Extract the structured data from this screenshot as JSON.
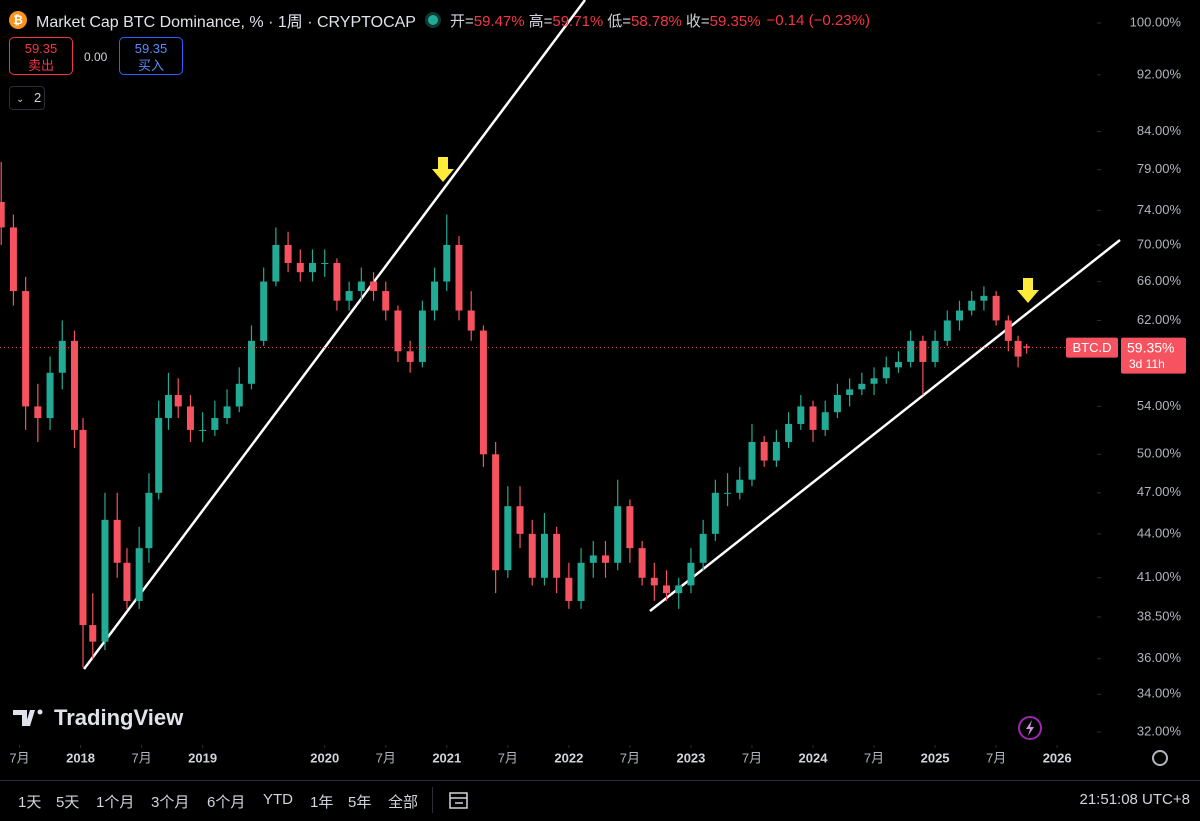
{
  "header": {
    "title": "Market Cap BTC Dominance, % · 1周 · CRYPTOCAP",
    "ohlc": [
      {
        "key": "开=",
        "value": "59.47%"
      },
      {
        "key": "高=",
        "value": "59.71%"
      },
      {
        "key": "低=",
        "value": "58.78%"
      },
      {
        "key": "收=",
        "value": "59.35%"
      }
    ],
    "change": "−0.14 (−0.23%)"
  },
  "trade_buttons": {
    "sell_price": "59.35",
    "sell_label": "卖出",
    "spread": "0.00",
    "buy_price": "59.35",
    "buy_label": "买入"
  },
  "indicator_count": 2,
  "branding": "TradingView",
  "ranges": [
    "1天",
    "5天",
    "1个月",
    "3个月",
    "6个月",
    "YTD",
    "1年",
    "5年",
    "全部"
  ],
  "clock": "21:51:08 UTC+8",
  "chart_data": {
    "type": "candlestick",
    "log_scale": true,
    "up_color": "#22ab94",
    "down_color": "#f7525f",
    "xlim": [
      2017.34,
      2026.31
    ],
    "ylim": [
      32,
      100
    ],
    "xticks": [
      {
        "value": 2017.5,
        "label": "7月"
      },
      2018,
      {
        "value": 2018.5,
        "label": "7月"
      },
      2019,
      2020,
      {
        "value": 2020.5,
        "label": "7月"
      },
      2021,
      {
        "value": 2021.5,
        "label": "7月"
      },
      2022,
      {
        "value": 2022.5,
        "label": "7月"
      },
      2023,
      {
        "value": 2023.5,
        "label": "7月"
      },
      2024,
      {
        "value": 2024.5,
        "label": "7月"
      },
      2025,
      {
        "value": 2025.5,
        "label": "7月"
      },
      2026
    ],
    "yticks": [
      {
        "value": 100,
        "label": "100.00%"
      },
      {
        "value": 92,
        "label": "92.00%"
      },
      {
        "value": 84,
        "label": "84.00%"
      },
      {
        "value": 79,
        "label": "79.00%"
      },
      {
        "value": 74,
        "label": "74.00%"
      },
      {
        "value": 70,
        "label": "70.00%"
      },
      {
        "value": 66,
        "label": "66.00%"
      },
      {
        "value": 62,
        "label": "62.00%"
      },
      {
        "value": 54,
        "label": "54.00%"
      },
      {
        "value": 50,
        "label": "50.00%"
      },
      {
        "value": 47,
        "label": "47.00%"
      },
      {
        "value": 44,
        "label": "44.00%"
      },
      {
        "value": 41,
        "label": "41.00%"
      },
      {
        "value": 38.5,
        "label": "38.50%"
      },
      {
        "value": 36,
        "label": "36.00%"
      },
      {
        "value": 34,
        "label": "34.00%"
      },
      {
        "value": 32,
        "label": "32.00%"
      }
    ],
    "x": [
      2017.35,
      2017.45,
      2017.55,
      2017.65,
      2017.75,
      2017.85,
      2017.95,
      2018.02,
      2018.1,
      2018.2,
      2018.3,
      2018.38,
      2018.48,
      2018.56,
      2018.64,
      2018.72,
      2018.8,
      2018.9,
      2019.0,
      2019.1,
      2019.2,
      2019.3,
      2019.4,
      2019.5,
      2019.6,
      2019.7,
      2019.8,
      2019.9,
      2020.0,
      2020.1,
      2020.2,
      2020.3,
      2020.4,
      2020.5,
      2020.6,
      2020.7,
      2020.8,
      2020.9,
      2021.0,
      2021.1,
      2021.2,
      2021.3,
      2021.4,
      2021.5,
      2021.6,
      2021.7,
      2021.8,
      2021.9,
      2022.0,
      2022.1,
      2022.2,
      2022.3,
      2022.4,
      2022.5,
      2022.6,
      2022.7,
      2022.8,
      2022.9,
      2023.0,
      2023.1,
      2023.2,
      2023.3,
      2023.4,
      2023.5,
      2023.6,
      2023.7,
      2023.8,
      2023.9,
      2024.0,
      2024.1,
      2024.2,
      2024.3,
      2024.4,
      2024.5,
      2024.6,
      2024.7,
      2024.8,
      2024.9,
      2025.0,
      2025.1,
      2025.2,
      2025.3,
      2025.4,
      2025.5,
      2025.6,
      2025.68,
      2025.75
    ],
    "open": [
      75,
      72,
      65,
      54,
      53,
      57,
      60,
      52,
      38,
      37,
      45,
      42,
      39.5,
      43,
      47,
      53,
      55,
      54,
      52,
      52,
      53,
      54,
      56,
      60,
      66,
      70,
      68,
      67,
      68,
      68,
      64,
      65,
      66,
      65,
      63,
      59,
      58,
      63,
      66,
      70,
      63,
      61,
      50,
      41.5,
      46,
      44,
      41,
      44,
      41,
      39.5,
      42,
      42.5,
      42,
      46,
      43,
      41,
      40.5,
      40,
      40.5,
      42,
      44,
      47,
      47,
      48,
      51,
      49.5,
      51,
      52.5,
      54,
      52,
      53.5,
      55,
      55.5,
      56,
      56.5,
      57.5,
      58,
      60,
      58,
      60,
      62,
      63,
      64,
      64.5,
      62,
      60,
      59.47
    ],
    "high": [
      80,
      73.5,
      66.5,
      56,
      58.5,
      62,
      61,
      53,
      40,
      47,
      47,
      43,
      44.5,
      48.5,
      54.5,
      57,
      56.5,
      55,
      53.5,
      54.5,
      55.5,
      57.5,
      61.5,
      67.5,
      72,
      71.5,
      69.5,
      69.5,
      69.5,
      68.5,
      66,
      67.5,
      67,
      66,
      63.5,
      60,
      64,
      67.5,
      73.5,
      71,
      65,
      61.5,
      51,
      47.5,
      47.5,
      45,
      45.5,
      44.5,
      42,
      43,
      43.5,
      43.5,
      48,
      46.5,
      43.5,
      42,
      41.5,
      41,
      43,
      45,
      48,
      48.5,
      49,
      52.5,
      51.5,
      52,
      53.5,
      55,
      54.5,
      54.5,
      56,
      56.5,
      57,
      57.5,
      58.5,
      59,
      61,
      60.5,
      61,
      63,
      64,
      65,
      65.5,
      65,
      62.5,
      60.5,
      59.71
    ],
    "low": [
      70,
      63.5,
      52,
      51,
      52,
      55.5,
      50.5,
      35.5,
      36,
      36.5,
      41,
      39,
      39,
      42,
      46.5,
      52,
      53,
      51,
      51,
      51.5,
      52.5,
      53.5,
      55.5,
      59.5,
      65.5,
      67,
      66,
      66,
      66.5,
      63,
      63,
      64,
      64,
      62,
      58,
      57,
      57.5,
      62,
      65,
      62,
      60,
      49,
      40,
      41,
      43,
      40.5,
      40.5,
      40,
      39,
      39,
      41,
      41,
      41.5,
      42,
      40.5,
      39.5,
      39.5,
      39,
      40,
      41.5,
      43.5,
      46,
      46.5,
      47.5,
      49,
      49,
      50.5,
      52,
      51,
      51.5,
      53,
      54,
      55,
      55,
      56,
      57,
      57.5,
      55,
      57.5,
      59.5,
      61,
      62.5,
      63,
      61.5,
      59,
      57.5,
      58.78
    ],
    "close": [
      72,
      65,
      54,
      53,
      57,
      60,
      52,
      38,
      37,
      45,
      42,
      39.5,
      43,
      47,
      53,
      55,
      54,
      52,
      52,
      53,
      54,
      56,
      60,
      66,
      70,
      68,
      67,
      68,
      68,
      64,
      65,
      66,
      65,
      63,
      59,
      58,
      63,
      66,
      70,
      63,
      61,
      50,
      41.5,
      46,
      44,
      41,
      44,
      41,
      39.5,
      42,
      42.5,
      42,
      46,
      43,
      41,
      40.5,
      40,
      40.5,
      42,
      44,
      47,
      47,
      48,
      51,
      49.5,
      51,
      52.5,
      54,
      52,
      53.5,
      55,
      55.5,
      56,
      56.5,
      57.5,
      58,
      60,
      58,
      60,
      62,
      63,
      64,
      64.5,
      62,
      60,
      58.5,
      59.35
    ],
    "price_tag": {
      "symbol": "BTC.D",
      "label": "59.35%",
      "countdown": "3d 11h"
    }
  }
}
